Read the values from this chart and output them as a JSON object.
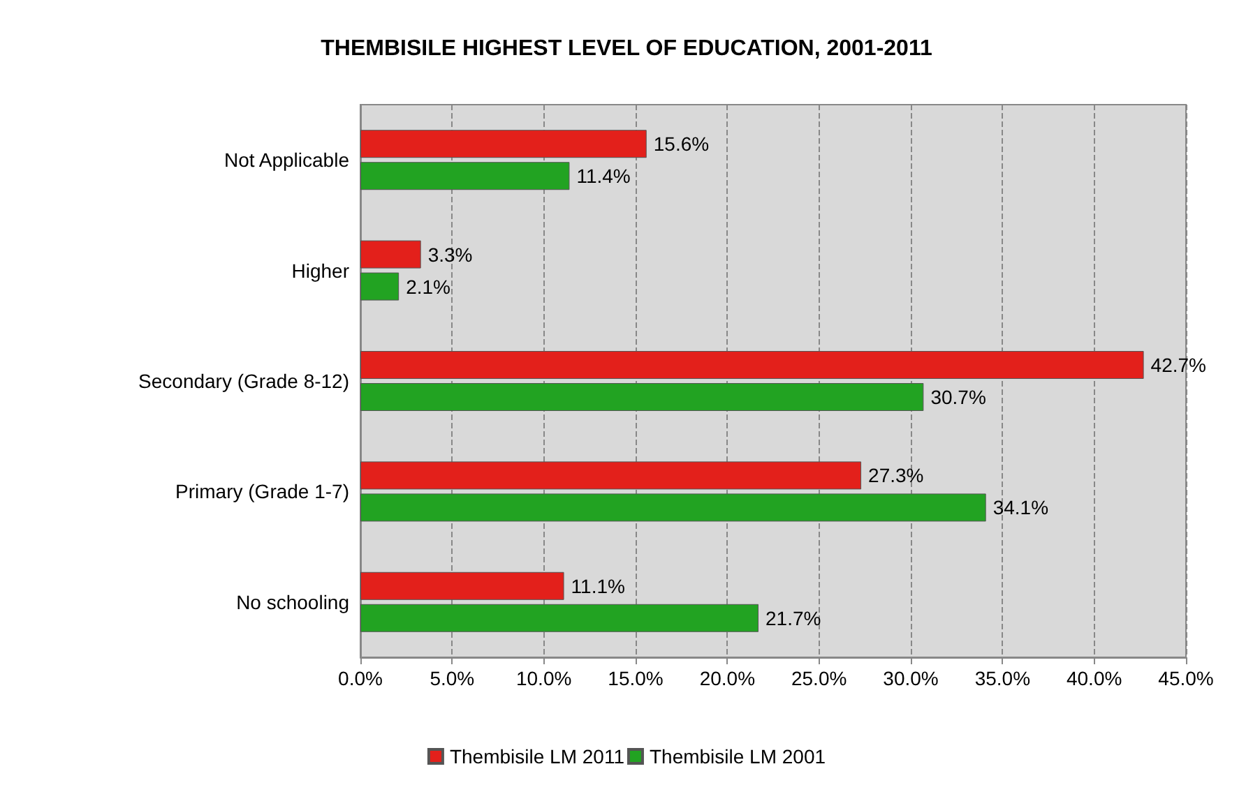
{
  "chart_data": {
    "type": "bar",
    "orientation": "horizontal",
    "title": "THEMBISILE HIGHEST LEVEL OF EDUCATION, 2001-2011",
    "categories": [
      "Not Applicable",
      "Higher",
      "Secondary (Grade 8-12)",
      "Primary (Grade 1-7)",
      "No schooling"
    ],
    "series": [
      {
        "name": "Thembisile LM 2011",
        "color": "#e3201b",
        "values": [
          15.6,
          3.3,
          42.7,
          27.3,
          11.1
        ],
        "value_labels": [
          "15.6%",
          "3.3%",
          "42.7%",
          "27.3%",
          "11.1%"
        ]
      },
      {
        "name": "Thembisile LM 2001",
        "color": "#22a322",
        "values": [
          11.4,
          2.1,
          30.7,
          34.1,
          21.7
        ],
        "value_labels": [
          "11.4%",
          "2.1%",
          "30.7%",
          "34.1%",
          "21.7%"
        ]
      }
    ],
    "xlim": [
      0,
      45
    ],
    "xticks": [
      {
        "value": 0,
        "label": "0.0%"
      },
      {
        "value": 5,
        "label": "5.0%"
      },
      {
        "value": 10,
        "label": "10.0%"
      },
      {
        "value": 15,
        "label": "15.0%"
      },
      {
        "value": 20,
        "label": "20.0%"
      },
      {
        "value": 25,
        "label": "25.0%"
      },
      {
        "value": 30,
        "label": "30.0%"
      },
      {
        "value": 35,
        "label": "35.0%"
      },
      {
        "value": 40,
        "label": "40.0%"
      },
      {
        "value": 45,
        "label": "45.0%"
      }
    ],
    "grid": "x",
    "legend": "bottom"
  }
}
